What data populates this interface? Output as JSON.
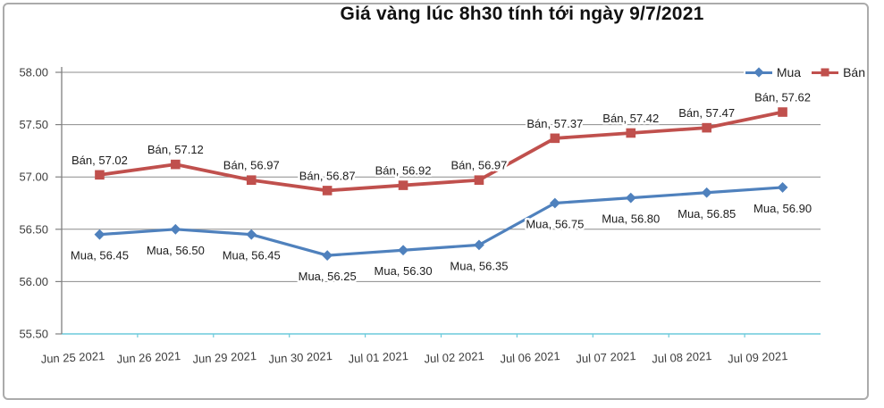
{
  "title": "Giá vàng lúc 8h30 tính tới ngày 9/7/2021",
  "chart_data": {
    "type": "line",
    "title": "Giá vàng lúc 8h30 tính tới ngày 9/7/2021",
    "categories": [
      "Jun 25 2021",
      "Jun 26 2021",
      "Jun 29 2021",
      "Jun 30 2021",
      "Jul 01 2021",
      "Jul 02 2021",
      "Jul 06 2021",
      "Jul 07 2021",
      "Jul 08 2021",
      "Jul 09 2021"
    ],
    "series": [
      {
        "name": "Mua",
        "values": [
          56.45,
          56.5,
          56.45,
          56.25,
          56.3,
          56.35,
          56.75,
          56.8,
          56.85,
          56.9
        ],
        "color": "#4F81BD",
        "marker": "diamond",
        "label_position": "below"
      },
      {
        "name": "Bán",
        "values": [
          57.02,
          57.12,
          56.97,
          56.87,
          56.92,
          56.97,
          57.37,
          57.42,
          57.47,
          57.62
        ],
        "color": "#C0504D",
        "marker": "square",
        "label_position": "above"
      }
    ],
    "ylim": [
      55.5,
      58.0
    ],
    "ytick_step": 0.5,
    "ytick_labels": [
      "58.00",
      "57.50",
      "57.00",
      "56.50",
      "56.00",
      "55.50"
    ],
    "grid": true,
    "legend_position": "top-right",
    "data_labels": true,
    "label_format": "{name}, {value}",
    "colors": {
      "gridline": "#8c8c8c",
      "y_axis": "#808080",
      "x_axis_baseline": "#6bcadb",
      "tick_text": "#3d3d3d",
      "data_label_text": "#1c1c1c",
      "frame_border": "#ababab"
    }
  }
}
